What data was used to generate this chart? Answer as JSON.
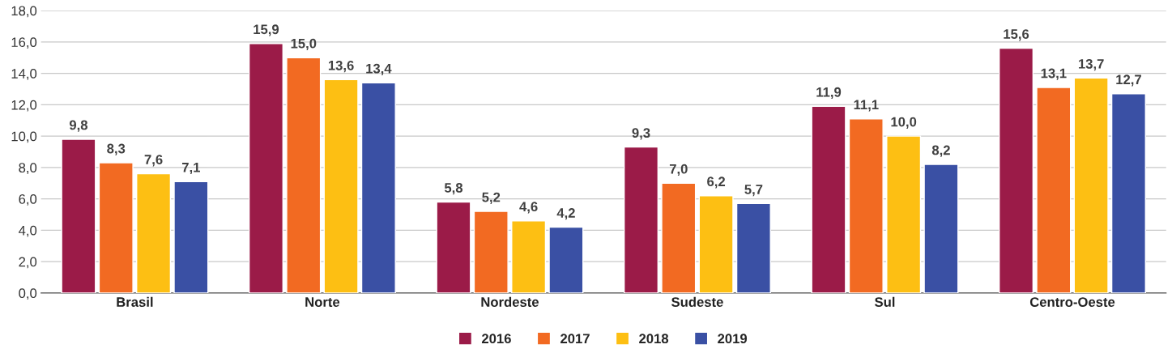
{
  "chart_data": {
    "type": "bar",
    "categories": [
      "Brasil",
      "Norte",
      "Nordeste",
      "Sudeste",
      "Sul",
      "Centro-Oeste"
    ],
    "series": [
      {
        "name": "2016",
        "color": "#9b1b48",
        "values": [
          9.8,
          15.9,
          5.8,
          9.3,
          11.9,
          15.6
        ],
        "value_labels": [
          "9,8",
          "15,9",
          "5,8",
          "9,3",
          "11,9",
          "15,6"
        ]
      },
      {
        "name": "2017",
        "color": "#f26a22",
        "values": [
          8.3,
          15.0,
          5.2,
          7.0,
          11.1,
          13.1
        ],
        "value_labels": [
          "8,3",
          "15,0",
          "5,2",
          "7,0",
          "11,1",
          "13,1"
        ]
      },
      {
        "name": "2018",
        "color": "#fdbf13",
        "values": [
          7.6,
          13.6,
          4.6,
          6.2,
          10.0,
          13.7
        ],
        "value_labels": [
          "7,6",
          "13,6",
          "4,6",
          "6,2",
          "10,0",
          "13,7"
        ]
      },
      {
        "name": "2019",
        "color": "#3a50a4",
        "values": [
          7.1,
          13.4,
          4.2,
          5.7,
          8.2,
          12.7
        ],
        "value_labels": [
          "7,1",
          "13,4",
          "4,2",
          "5,7",
          "8,2",
          "12,7"
        ]
      }
    ],
    "ylim": [
      0,
      18
    ],
    "yticks": [
      {
        "value": 0,
        "label": "0,0"
      },
      {
        "value": 2,
        "label": "2,0"
      },
      {
        "value": 4,
        "label": "4,0"
      },
      {
        "value": 6,
        "label": "6,0"
      },
      {
        "value": 8,
        "label": "8,0"
      },
      {
        "value": 10,
        "label": "10,0"
      },
      {
        "value": 12,
        "label": "12,0"
      },
      {
        "value": 14,
        "label": "14,0"
      },
      {
        "value": 16,
        "label": "16,0"
      },
      {
        "value": 18,
        "label": "18,0"
      }
    ],
    "grid": "y",
    "legend": "bottom"
  }
}
